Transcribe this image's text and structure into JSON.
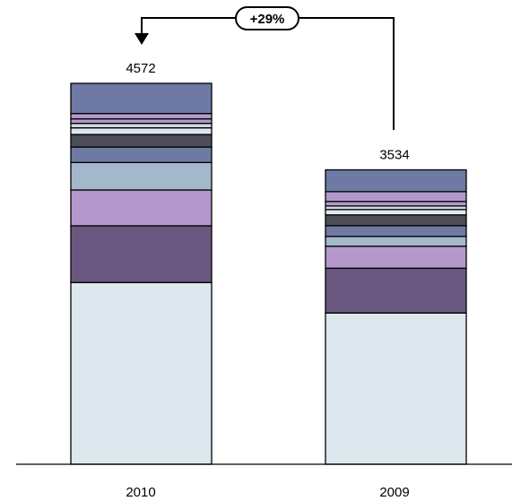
{
  "chart_data": {
    "type": "bar",
    "stacked": true,
    "categories": [
      "2010",
      "2009"
    ],
    "totals": [
      "4572",
      "3534"
    ],
    "series": [
      {
        "color": "#dde8ee",
        "values": [
          2182,
          1816
        ]
      },
      {
        "color": "#6b5880",
        "values": [
          680,
          537
        ]
      },
      {
        "color": "#b498cc",
        "values": [
          430,
          264
        ]
      },
      {
        "color": "#a4b8cc",
        "values": [
          330,
          118
        ]
      },
      {
        "color": "#6e7aa4",
        "values": [
          186,
          129
        ]
      },
      {
        "color": "#4e4e5a",
        "values": [
          150,
          129
        ]
      },
      {
        "color": "#dde8ee",
        "values": [
          80,
          64
        ]
      },
      {
        "color": "#cfd8e0",
        "values": [
          54,
          43
        ]
      },
      {
        "color": "#b498cc",
        "values": [
          54,
          54
        ]
      },
      {
        "color": "#b498cc",
        "values": [
          64,
          118
        ]
      },
      {
        "color": "#6e7aa4",
        "values": [
          362,
          262
        ]
      }
    ],
    "change_label": "+29%",
    "ylim": [
      0,
      4572
    ],
    "grid": false,
    "legend": "none"
  }
}
